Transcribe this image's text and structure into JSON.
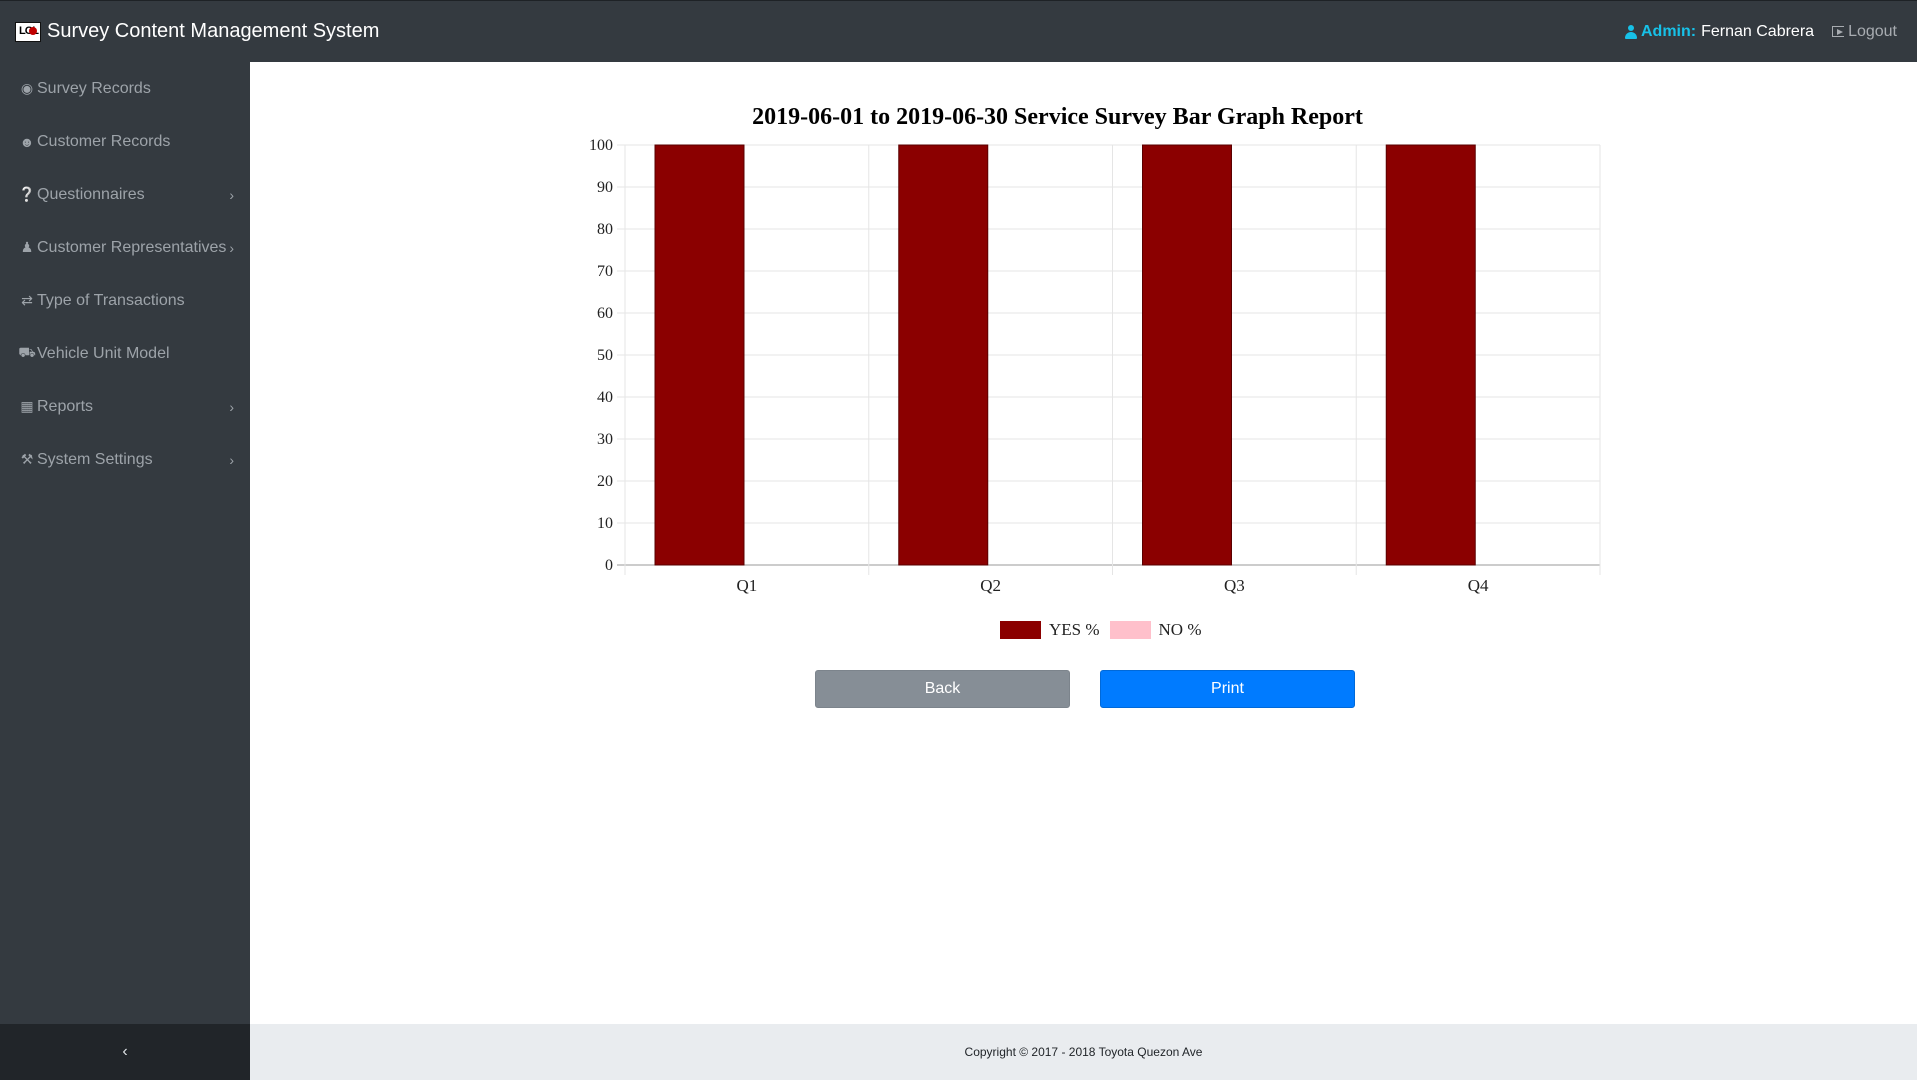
{
  "header": {
    "title": "Survey Content Management System",
    "logo_text": "LOL",
    "admin_label": "Admin:",
    "admin_name": "Fernan Cabrera",
    "logout_label": "Logout"
  },
  "sidebar": {
    "items": [
      {
        "label": "Survey Records",
        "icon": "dashboard-icon",
        "submenu": false
      },
      {
        "label": "Customer Records",
        "icon": "users-icon",
        "submenu": false
      },
      {
        "label": "Questionnaires",
        "icon": "question-circle-icon",
        "submenu": true
      },
      {
        "label": "Customer Representatives",
        "icon": "user-icon",
        "submenu": true
      },
      {
        "label": "Type of Transactions",
        "icon": "exchange-icon",
        "submenu": false
      },
      {
        "label": "Vehicle Unit Model",
        "icon": "car-icon",
        "submenu": false
      },
      {
        "label": "Reports",
        "icon": "keyboard-icon",
        "submenu": true
      },
      {
        "label": "System Settings",
        "icon": "wrench-icon",
        "submenu": true
      }
    ],
    "toggle_glyph": "‹"
  },
  "main": {
    "back_label": "Back",
    "print_label": "Print"
  },
  "footer": {
    "copyright": "Copyright © 2017 - 2018 Toyota Quezon Ave"
  },
  "colors": {
    "yes": "#8b0000",
    "no": "#ffc0cb",
    "sidebar_bg": "#343a40",
    "accent": "#17c1e8",
    "print_button": "#007bff",
    "back_button": "#868e96"
  },
  "chart_data": {
    "type": "bar",
    "title": "2019-06-01 to 2019-06-30 Service Survey Bar Graph Report",
    "categories": [
      "Q1",
      "Q2",
      "Q3",
      "Q4"
    ],
    "series": [
      {
        "name": "YES %",
        "values": [
          100,
          100,
          100,
          100
        ]
      },
      {
        "name": "NO %",
        "values": [
          0,
          0,
          0,
          0
        ]
      }
    ],
    "ylim": [
      0,
      100
    ],
    "yticks": [
      0,
      10,
      20,
      30,
      40,
      50,
      60,
      70,
      80,
      90,
      100
    ],
    "xlabel": "",
    "ylabel": "",
    "grid": true,
    "legend": "bottom-center"
  }
}
